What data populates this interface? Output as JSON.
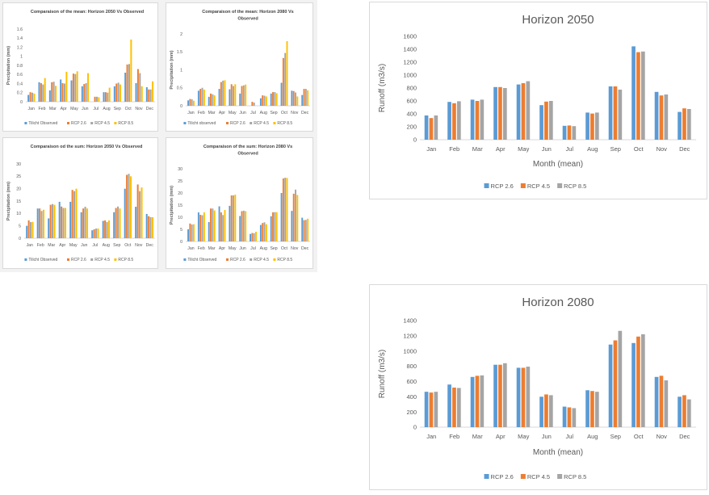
{
  "colors": {
    "observed": "#5b9bd5",
    "rcp26": "#ed7d31",
    "rcp45": "#a5a5a5",
    "rcp85": "#ffc000",
    "axis": "#d9d9d9",
    "text": "#595959"
  },
  "chart_data": [
    {
      "id": "mean-2050",
      "type": "bar",
      "title": "Comparaison of the mean: Horizon 2050 Vs Observed",
      "xlabel": "",
      "ylabel": "Precipitation (mm)",
      "ylim": [
        0,
        1.6
      ],
      "yticks": [
        "0",
        "0.2",
        "0.4",
        "0.6",
        "0.8",
        "1",
        "1.2",
        "1.4",
        "1.6"
      ],
      "grid": false,
      "legend": "bottom",
      "categories": [
        "Jan",
        "Feb",
        "Mar",
        "Apr",
        "May",
        "Jun",
        "Jul",
        "Aug",
        "Sep",
        "Oct",
        "Nov",
        "Dec"
      ],
      "series": [
        {
          "name": "Tilicht Observed",
          "values": [
            0.15,
            0.43,
            0.25,
            0.49,
            0.47,
            0.34,
            0.0,
            0.21,
            0.34,
            0.64,
            0.41,
            0.32
          ]
        },
        {
          "name": "RCP 2.6",
          "values": [
            0.21,
            0.41,
            0.43,
            0.41,
            0.62,
            0.39,
            0.11,
            0.21,
            0.4,
            0.82,
            0.72,
            0.27
          ]
        },
        {
          "name": "RCP 4.5",
          "values": [
            0.2,
            0.38,
            0.44,
            0.4,
            0.61,
            0.41,
            0.11,
            0.2,
            0.42,
            0.83,
            0.63,
            0.27
          ]
        },
        {
          "name": "RCP 8.5",
          "values": [
            0.18,
            0.52,
            0.35,
            0.66,
            0.67,
            0.63,
            0.1,
            0.31,
            0.38,
            1.37,
            0.34,
            0.45
          ]
        }
      ]
    },
    {
      "id": "mean-2080",
      "type": "bar",
      "title": "Comparaison of the mean: Horizon 2080 Vs Observed",
      "xlabel": "",
      "ylabel": "Precipitation (mm)",
      "ylim": [
        0,
        2
      ],
      "yticks": [
        "0",
        "0.5",
        "1",
        "1.5",
        "2"
      ],
      "grid": false,
      "legend": "bottom",
      "categories": [
        "Jan",
        "Feb",
        "Mar",
        "Apr",
        "May",
        "Jun",
        "Jul",
        "Aug",
        "Sep",
        "Oct",
        "Nov",
        "Dec"
      ],
      "series": [
        {
          "name": "Tilicht observed",
          "values": [
            0.15,
            0.42,
            0.25,
            0.47,
            0.46,
            0.34,
            0.0,
            0.21,
            0.34,
            0.64,
            0.42,
            0.3
          ]
        },
        {
          "name": "RCP 2.6",
          "values": [
            0.19,
            0.47,
            0.34,
            0.66,
            0.6,
            0.55,
            0.11,
            0.29,
            0.38,
            1.33,
            0.41,
            0.47
          ]
        },
        {
          "name": "RCP 4.5",
          "values": [
            0.18,
            0.5,
            0.32,
            0.7,
            0.55,
            0.57,
            0.09,
            0.28,
            0.38,
            1.47,
            0.37,
            0.47
          ]
        },
        {
          "name": "RCP 8.5",
          "values": [
            0.14,
            0.45,
            0.29,
            0.71,
            0.6,
            0.59,
            0.0,
            0.26,
            0.35,
            1.8,
            0.26,
            0.43
          ]
        }
      ]
    },
    {
      "id": "sum-2050",
      "type": "bar",
      "title": "Comparaison od the sum: Horizon 2050 Vs Observed",
      "xlabel": "",
      "ylabel": "Precipitation (mm)",
      "ylim": [
        0,
        30
      ],
      "yticks": [
        "0",
        "5",
        "10",
        "15",
        "20",
        "25",
        "30"
      ],
      "grid": false,
      "legend": "bottom",
      "categories": [
        "Jan",
        "Feb",
        "Mar",
        "Apr",
        "May",
        "Jun",
        "Jul",
        "Aug",
        "Sep",
        "Oct",
        "Nov",
        "Dec"
      ],
      "series": [
        {
          "name": "Tilicht Observed",
          "values": [
            5.0,
            12.0,
            8.0,
            14.7,
            14.7,
            10.5,
            3.2,
            7.0,
            10.5,
            20.0,
            12.7,
            9.8
          ]
        },
        {
          "name": "RCP 2.6",
          "values": [
            7.2,
            12.0,
            13.5,
            12.8,
            19.5,
            12.0,
            3.6,
            7.2,
            12.2,
            25.6,
            21.7,
            8.9
          ]
        },
        {
          "name": "RCP 4.5",
          "values": [
            6.5,
            11.0,
            13.8,
            12.2,
            19.0,
            12.7,
            3.9,
            6.5,
            12.8,
            26.0,
            19.0,
            8.5
          ]
        },
        {
          "name": "RCP 8.5",
          "values": [
            6.6,
            11.5,
            13.5,
            12.2,
            20.0,
            12.0,
            3.9,
            7.2,
            12.0,
            25.0,
            20.5,
            8.5
          ]
        }
      ]
    },
    {
      "id": "sum-2080",
      "type": "bar",
      "title": "Comparaison of the sum: Horizon 2080 Vs Observed",
      "xlabel": "",
      "ylabel": "Precipitation (mm)",
      "ylim": [
        0,
        30
      ],
      "yticks": [
        "0",
        "5",
        "10",
        "15",
        "20",
        "25",
        "30"
      ],
      "grid": false,
      "legend": "bottom",
      "categories": [
        "Jan",
        "Feb",
        "Mar",
        "Apr",
        "May",
        "Jun",
        "Jul",
        "Aug",
        "Sep",
        "Oct",
        "Nov",
        "Dec"
      ],
      "series": [
        {
          "name": "Tilicht Observed",
          "values": [
            5.0,
            12.0,
            8.0,
            14.5,
            14.7,
            10.5,
            3.1,
            6.8,
            10.4,
            20.0,
            12.6,
            9.8
          ]
        },
        {
          "name": "RCP 2.6",
          "values": [
            7.4,
            11.0,
            13.6,
            12.0,
            19.0,
            12.5,
            3.5,
            7.6,
            12.0,
            26.0,
            19.7,
            8.8
          ]
        },
        {
          "name": "RCP 4.5",
          "values": [
            7.0,
            10.8,
            13.6,
            10.9,
            19.0,
            12.7,
            3.4,
            7.9,
            12.1,
            26.3,
            21.4,
            8.9
          ]
        },
        {
          "name": "RCP 8.5",
          "values": [
            7.1,
            12.0,
            12.8,
            13.0,
            19.3,
            12.5,
            4.0,
            7.1,
            12.1,
            26.2,
            19.2,
            9.4
          ]
        }
      ]
    },
    {
      "id": "runoff-2050",
      "type": "bar",
      "title": "Horizon 2050",
      "xlabel": "Month (mean)",
      "ylabel": "Runoff (m3/s)",
      "ylim": [
        0,
        1600
      ],
      "yticks": [
        "0",
        "200",
        "400",
        "600",
        "800",
        "1000",
        "1200",
        "1400",
        "1600"
      ],
      "grid": false,
      "legend": "bottom",
      "categories": [
        "Jan",
        "Feb",
        "Mar",
        "Apr",
        "May",
        "Jun",
        "Jul",
        "Aug",
        "Sep",
        "Oct",
        "Nov",
        "Dec"
      ],
      "series": [
        {
          "name": "RCP 2.6",
          "values": [
            375,
            585,
            620,
            815,
            855,
            535,
            215,
            420,
            825,
            1445,
            740,
            430
          ]
        },
        {
          "name": "RCP 4.5",
          "values": [
            335,
            565,
            600,
            815,
            875,
            590,
            220,
            405,
            825,
            1355,
            685,
            485
          ]
        },
        {
          "name": "RCP 8.5",
          "values": [
            375,
            595,
            620,
            800,
            905,
            600,
            210,
            420,
            775,
            1365,
            700,
            475
          ]
        }
      ]
    },
    {
      "id": "runoff-2080",
      "type": "bar",
      "title": "Horizon 2080",
      "xlabel": "Month (mean)",
      "ylabel": "Runoff (m3/s)",
      "ylim": [
        0,
        1400
      ],
      "yticks": [
        "0",
        "200",
        "400",
        "600",
        "800",
        "1000",
        "1200",
        "1400"
      ],
      "grid": false,
      "legend": "bottom",
      "categories": [
        "Jan",
        "Feb",
        "Mar",
        "Apr",
        "May",
        "Jun",
        "Jul",
        "Aug",
        "Sep",
        "Oct",
        "Nov",
        "Dec"
      ],
      "series": [
        {
          "name": "RCP 2.6",
          "values": [
            465,
            560,
            660,
            820,
            780,
            400,
            270,
            485,
            1085,
            1105,
            660,
            400
          ]
        },
        {
          "name": "RCP 4.5",
          "values": [
            455,
            520,
            675,
            820,
            780,
            430,
            260,
            475,
            1140,
            1190,
            675,
            420
          ]
        },
        {
          "name": "RCP 8.5",
          "values": [
            465,
            515,
            680,
            840,
            795,
            420,
            250,
            465,
            1265,
            1220,
            615,
            365
          ]
        }
      ]
    }
  ]
}
